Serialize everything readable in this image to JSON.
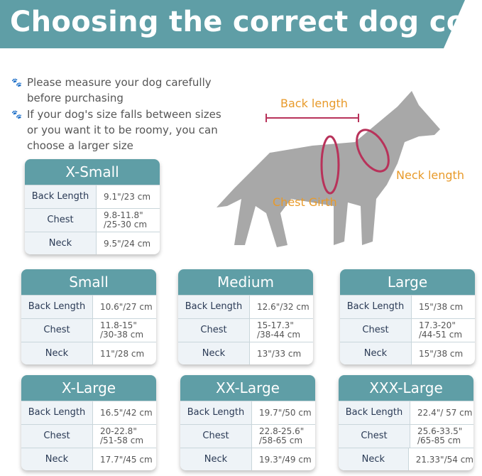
{
  "title": "Choosing the correct dog coat",
  "colors": {
    "banner": "#5f9ea6",
    "accent": "#e89a2a",
    "measure": "#b8325a",
    "dog": "#a8a8a8"
  },
  "tips": [
    "Please measure your dog carefully before purchasing",
    "If your dog's size falls between sizes or you want it to be roomy, you can choose a larger size"
  ],
  "diagram": {
    "back": "Back length",
    "neck": "Neck length",
    "chest": "Chest Girth"
  },
  "labels": {
    "back": "Back Length",
    "chest": "Chest",
    "neck": "Neck"
  },
  "sizes": [
    {
      "name": "X-Small",
      "back": "9.1\"/23 cm",
      "chest": "9.8-11.8\"\n/25-30 cm",
      "neck": "9.5\"/24 cm"
    },
    {
      "name": "Small",
      "back": "10.6\"/27 cm",
      "chest": "11.8-15\"\n/30-38 cm",
      "neck": "11\"/28 cm"
    },
    {
      "name": "Medium",
      "back": "12.6\"/32 cm",
      "chest": "15-17.3\"\n/38-44 cm",
      "neck": "13\"/33 cm"
    },
    {
      "name": "Large",
      "back": "15\"/38 cm",
      "chest": "17.3-20\"\n/44-51 cm",
      "neck": "15\"/38 cm"
    },
    {
      "name": "X-Large",
      "back": "16.5\"/42 cm",
      "chest": "20-22.8\"\n/51-58 cm",
      "neck": "17.7\"/45 cm"
    },
    {
      "name": "XX-Large",
      "back": "19.7\"/50 cm",
      "chest": "22.8-25.6\"\n/58-65 cm",
      "neck": "19.3\"/49 cm"
    },
    {
      "name": "XXX-Large",
      "back": "22.4\"/ 57 cm",
      "chest": "25.6-33.5\"\n/65-85 cm",
      "neck": "21.33\"/54 cm"
    }
  ]
}
